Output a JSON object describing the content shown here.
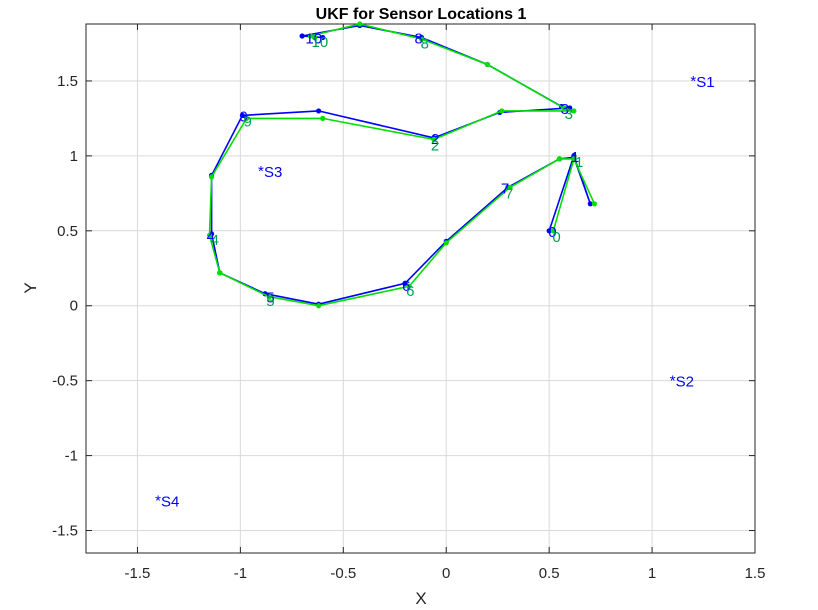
{
  "chart_data": {
    "type": "line",
    "title": "UKF for Sensor Locations 1",
    "xlabel": "X",
    "ylabel": "Y",
    "xlim": [
      -1.75,
      1.5
    ],
    "ylim": [
      -1.65,
      1.88
    ],
    "xticks": [
      -1.5,
      -1,
      -0.5,
      0,
      0.5,
      1,
      1.5
    ],
    "yticks": [
      -1.5,
      -1,
      -0.5,
      0,
      0.5,
      1,
      1.5
    ],
    "xtick_labels": [
      "-1.5",
      "-1",
      "-0.5",
      "0",
      "0.5",
      "1",
      "1.5"
    ],
    "ytick_labels": [
      "-1.5",
      "-1",
      "-0.5",
      "0",
      "0.5",
      "1",
      "1.5"
    ],
    "grid": true,
    "colors": {
      "series_a": "#0000ff",
      "series_b": "#00e000",
      "labels_a": "#0000ff",
      "labels_b": "#00a050",
      "grid": "#d9d9d9",
      "axis": "#262626"
    },
    "series": [
      {
        "points": [
          [
            0.5,
            0.5
          ],
          [
            0.62,
            1.0
          ],
          [
            0.7,
            0.68
          ],
          [
            0.62,
            0.99
          ],
          [
            0.55,
            0.98
          ],
          [
            0.3,
            0.79
          ],
          [
            0.0,
            0.43
          ],
          [
            -0.2,
            0.15
          ],
          [
            -0.62,
            0.01
          ],
          [
            -0.88,
            0.08
          ],
          [
            -1.1,
            0.22
          ],
          [
            -1.14,
            0.48
          ],
          [
            -1.14,
            0.87
          ],
          [
            -0.99,
            1.27
          ],
          [
            -0.62,
            1.3
          ],
          [
            -0.06,
            1.12
          ],
          [
            0.26,
            1.29
          ],
          [
            0.6,
            1.32
          ],
          [
            0.56,
            1.33
          ],
          [
            0.2,
            1.61
          ],
          [
            -0.12,
            1.79
          ],
          [
            -0.42,
            1.87
          ],
          [
            -0.7,
            1.8
          ],
          [
            -0.6,
            1.79
          ]
        ]
      },
      {
        "points": [
          [
            0.52,
            0.5
          ],
          [
            0.62,
            0.98
          ],
          [
            0.72,
            0.68
          ],
          [
            0.62,
            0.98
          ],
          [
            0.55,
            0.98
          ],
          [
            0.31,
            0.79
          ],
          [
            0.0,
            0.42
          ],
          [
            -0.18,
            0.13
          ],
          [
            -0.62,
            0.0
          ],
          [
            -0.86,
            0.06
          ],
          [
            -1.1,
            0.22
          ],
          [
            -1.15,
            0.47
          ],
          [
            -1.14,
            0.86
          ],
          [
            -0.97,
            1.25
          ],
          [
            -0.6,
            1.25
          ],
          [
            -0.06,
            1.11
          ],
          [
            0.27,
            1.3
          ],
          [
            0.62,
            1.3
          ],
          [
            0.57,
            1.32
          ],
          [
            0.2,
            1.61
          ],
          [
            -0.12,
            1.78
          ],
          [
            -0.42,
            1.88
          ],
          [
            -0.66,
            1.8
          ],
          [
            -0.64,
            1.79
          ]
        ]
      }
    ],
    "point_labels_a": [
      {
        "text": "0",
        "x": 0.52,
        "y": 0.5
      },
      {
        "text": "1",
        "x": 0.63,
        "y": 1.0
      },
      {
        "text": "2",
        "x": -0.05,
        "y": 1.12
      },
      {
        "text": "3",
        "x": 0.58,
        "y": 1.32
      },
      {
        "text": "4",
        "x": -1.14,
        "y": 0.47
      },
      {
        "text": "5",
        "x": -0.85,
        "y": 0.06
      },
      {
        "text": "6",
        "x": -0.19,
        "y": 0.14
      },
      {
        "text": "7",
        "x": 0.29,
        "y": 0.79
      },
      {
        "text": "8",
        "x": -0.13,
        "y": 1.79
      },
      {
        "text": "9",
        "x": -0.98,
        "y": 1.27
      },
      {
        "text": "10",
        "x": -0.66,
        "y": 1.79
      }
    ],
    "point_labels_b": [
      {
        "text": "0",
        "x": 0.53,
        "y": 0.48
      },
      {
        "text": "1",
        "x": 0.64,
        "y": 0.98
      },
      {
        "text": "2",
        "x": -0.06,
        "y": 1.09
      },
      {
        "text": "3",
        "x": 0.59,
        "y": 1.3
      },
      {
        "text": "4",
        "x": -1.13,
        "y": 0.46
      },
      {
        "text": "5",
        "x": -0.86,
        "y": 0.05
      },
      {
        "text": "6",
        "x": -0.18,
        "y": 0.12
      },
      {
        "text": "7",
        "x": 0.3,
        "y": 0.77
      },
      {
        "text": "8",
        "x": -0.11,
        "y": 1.77
      },
      {
        "text": "9",
        "x": -0.97,
        "y": 1.25
      },
      {
        "text": "10",
        "x": -0.64,
        "y": 1.78
      }
    ],
    "sensors": [
      {
        "label": "S1",
        "x": 1.2,
        "y": 1.5
      },
      {
        "label": "S2",
        "x": 1.1,
        "y": -0.5
      },
      {
        "label": "S3",
        "x": -0.9,
        "y": 0.9
      },
      {
        "label": "S4",
        "x": -1.4,
        "y": -1.3
      }
    ]
  }
}
